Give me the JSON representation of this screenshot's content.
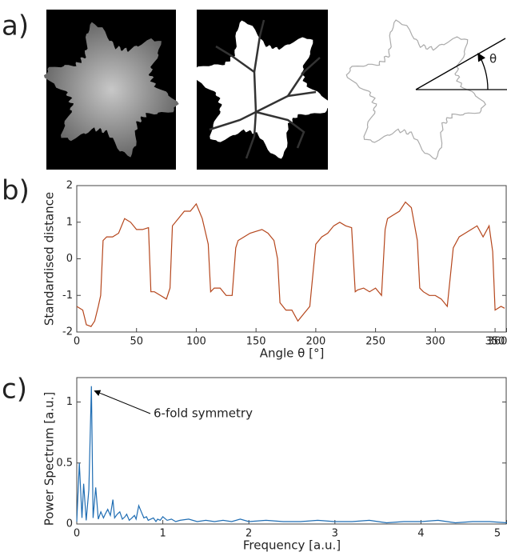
{
  "panel_labels": [
    "a)",
    "b)",
    "c)"
  ],
  "diagram": {
    "angle_label": "θ"
  },
  "chart_data": [
    {
      "type": "line",
      "xlabel": "Angle θ [°]",
      "ylabel": "Standardised distance",
      "color": "#b5461c",
      "xlim": [
        0,
        360
      ],
      "ylim": [
        -2,
        2
      ],
      "xticks": [
        0,
        50,
        100,
        150,
        200,
        250,
        300,
        350,
        360
      ],
      "yticks": [
        -2,
        -1,
        0,
        1,
        2
      ],
      "x": [
        0,
        5,
        8,
        12,
        15,
        18,
        20,
        22,
        25,
        30,
        35,
        40,
        45,
        50,
        55,
        60,
        62,
        65,
        70,
        75,
        78,
        80,
        85,
        90,
        95,
        100,
        105,
        110,
        112,
        115,
        120,
        125,
        130,
        133,
        135,
        140,
        145,
        150,
        155,
        160,
        165,
        168,
        170,
        175,
        180,
        185,
        190,
        195,
        200,
        205,
        210,
        215,
        220,
        225,
        230,
        233,
        235,
        240,
        245,
        250,
        255,
        258,
        260,
        265,
        270,
        275,
        280,
        285,
        287,
        290,
        295,
        300,
        305,
        310,
        315,
        320,
        325,
        330,
        335,
        340,
        345,
        348,
        350,
        355,
        358
      ],
      "values": [
        -1.3,
        -1.4,
        -1.8,
        -1.85,
        -1.7,
        -1.3,
        -1.0,
        0.5,
        0.6,
        0.6,
        0.7,
        1.1,
        1.0,
        0.8,
        0.8,
        0.85,
        -0.9,
        -0.9,
        -1.0,
        -1.1,
        -0.8,
        0.9,
        1.1,
        1.3,
        1.3,
        1.5,
        1.1,
        0.4,
        -0.9,
        -0.8,
        -0.8,
        -1.0,
        -1.0,
        0.3,
        0.5,
        0.6,
        0.7,
        0.75,
        0.8,
        0.7,
        0.5,
        0.0,
        -1.2,
        -1.4,
        -1.4,
        -1.7,
        -1.5,
        -1.3,
        0.4,
        0.6,
        0.7,
        0.9,
        1.0,
        0.9,
        0.85,
        -0.9,
        -0.85,
        -0.8,
        -0.9,
        -0.8,
        -1.0,
        0.8,
        1.1,
        1.2,
        1.3,
        1.55,
        1.4,
        0.5,
        -0.8,
        -0.9,
        -1.0,
        -1.0,
        -1.1,
        -1.3,
        0.3,
        0.6,
        0.7,
        0.8,
        0.9,
        0.6,
        0.9,
        0.2,
        -1.4,
        -1.3,
        -1.35
      ]
    },
    {
      "type": "line",
      "xlabel": "Frequency [a.u.]",
      "ylabel": "Power Spectrum [a.u.]",
      "color": "#1f6db3",
      "annotation": "6-fold symmetry",
      "xlim": [
        0,
        5
      ],
      "ylim": [
        0,
        1.2
      ],
      "xticks": [
        0,
        1,
        2,
        3,
        4,
        5
      ],
      "yticks": [
        0,
        0.5,
        1
      ],
      "x": [
        0,
        0.03,
        0.06,
        0.08,
        0.11,
        0.14,
        0.17,
        0.19,
        0.22,
        0.25,
        0.28,
        0.31,
        0.33,
        0.36,
        0.39,
        0.42,
        0.44,
        0.47,
        0.5,
        0.53,
        0.56,
        0.58,
        0.61,
        0.64,
        0.67,
        0.69,
        0.72,
        0.75,
        0.78,
        0.81,
        0.83,
        0.86,
        0.89,
        0.92,
        0.94,
        0.97,
        1.0,
        1.05,
        1.1,
        1.15,
        1.2,
        1.3,
        1.4,
        1.5,
        1.6,
        1.7,
        1.8,
        1.9,
        2.0,
        2.2,
        2.4,
        2.6,
        2.8,
        3.0,
        3.2,
        3.4,
        3.6,
        3.8,
        4.0,
        4.2,
        4.4,
        4.6,
        4.8,
        5.0
      ],
      "values": [
        0.02,
        0.5,
        0.05,
        0.33,
        0.03,
        0.28,
        1.13,
        0.05,
        0.3,
        0.04,
        0.1,
        0.05,
        0.08,
        0.12,
        0.07,
        0.2,
        0.05,
        0.08,
        0.1,
        0.04,
        0.06,
        0.08,
        0.03,
        0.05,
        0.07,
        0.04,
        0.15,
        0.1,
        0.05,
        0.06,
        0.03,
        0.04,
        0.05,
        0.02,
        0.04,
        0.03,
        0.06,
        0.03,
        0.04,
        0.02,
        0.03,
        0.04,
        0.02,
        0.03,
        0.02,
        0.03,
        0.02,
        0.04,
        0.02,
        0.03,
        0.02,
        0.02,
        0.03,
        0.02,
        0.02,
        0.03,
        0.01,
        0.02,
        0.02,
        0.03,
        0.01,
        0.02,
        0.02,
        0.01
      ]
    }
  ]
}
